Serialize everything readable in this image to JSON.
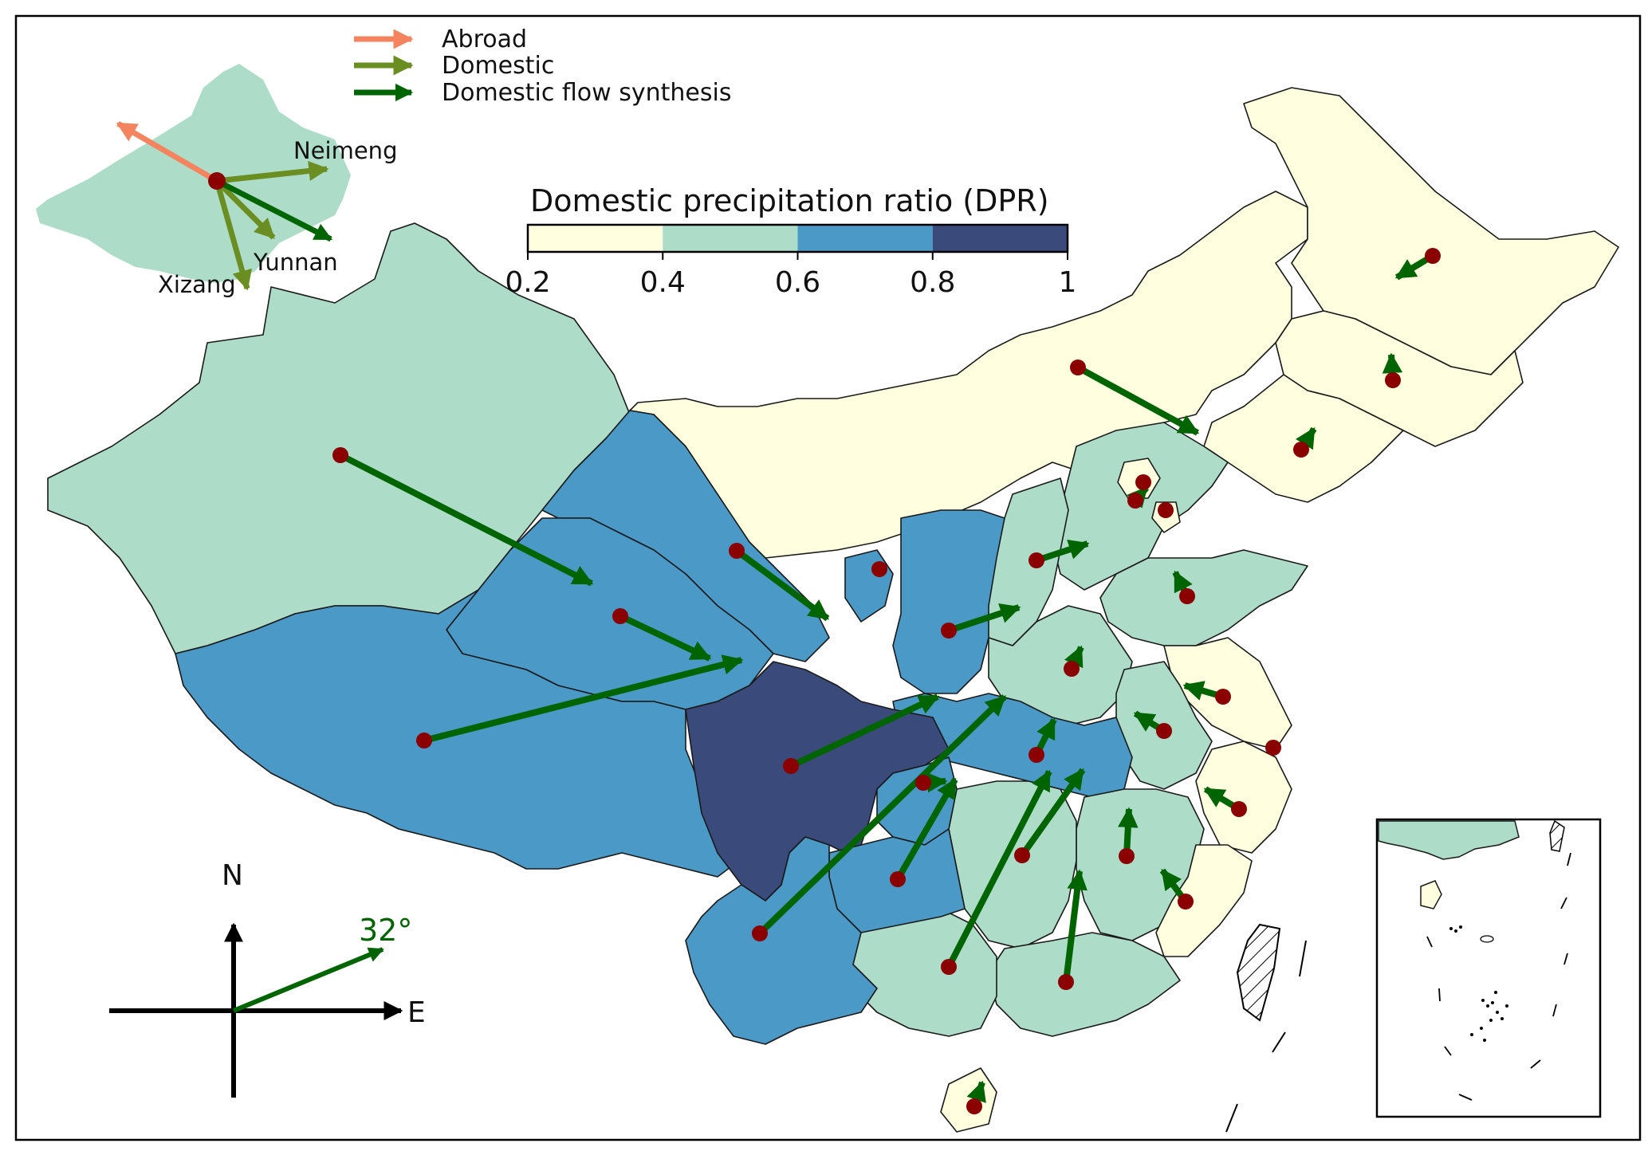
{
  "legend": {
    "items": [
      {
        "label": "Abroad",
        "color": "#f4845f"
      },
      {
        "label": "Domestic",
        "color": "#6b8e23"
      },
      {
        "label": "Domestic flow synthesis",
        "color": "#006400"
      }
    ]
  },
  "inset_labels": {
    "neimeng": "Neimeng",
    "yunnan": "Yunnan",
    "xizang": "Xizang"
  },
  "colorbar": {
    "title": "Domestic precipitation ratio (DPR)",
    "ticks": [
      "0.2",
      "0.4",
      "0.6",
      "0.8",
      "1"
    ],
    "bins": [
      {
        "range": [
          0.2,
          0.4
        ],
        "color": "#ffffe0"
      },
      {
        "range": [
          0.4,
          0.6
        ],
        "color": "#addcc8"
      },
      {
        "range": [
          0.6,
          0.8
        ],
        "color": "#4b99c7"
      },
      {
        "range": [
          0.8,
          1.0
        ],
        "color": "#3a4a7b"
      }
    ]
  },
  "compass": {
    "north": "N",
    "east": "E",
    "angle_label": "32°",
    "angle_deg": 32
  },
  "colors": {
    "flow": "#006400",
    "source_dot": "#8b0000",
    "abroad": "#f4845f",
    "domestic": "#6b8e23"
  }
}
